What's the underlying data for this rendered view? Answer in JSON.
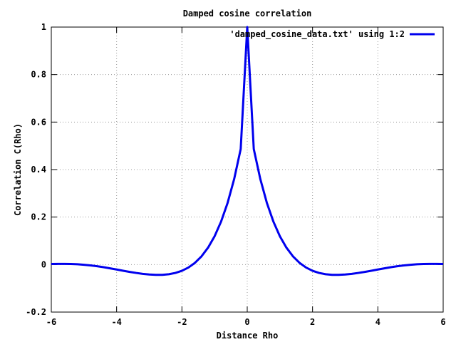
{
  "chart_data": {
    "type": "line",
    "title": "Damped cosine correlation",
    "xlabel": "Distance Rho",
    "ylabel": "Correlation C(Rho)",
    "xlim": [
      -6,
      6
    ],
    "ylim": [
      -0.2,
      1
    ],
    "xticks": [
      -6,
      -4,
      -2,
      0,
      2,
      4,
      6
    ],
    "xtick_labels": [
      "-6",
      "-4",
      "-2",
      "0",
      "2",
      "4",
      "6"
    ],
    "yticks": [
      -0.2,
      0,
      0.2,
      0.4,
      0.6,
      0.8,
      1
    ],
    "ytick_labels": [
      "-0.2",
      "0",
      "0.2",
      "0.4",
      "0.6",
      "0.8",
      "1"
    ],
    "grid": true,
    "legend_position": "top-right",
    "series": [
      {
        "name": "'damped_cosine_data.txt' using 1:2",
        "color": "#0000ee",
        "x": [
          -6,
          -5.8,
          -5.6,
          -5.4,
          -5.2,
          -5,
          -4.8,
          -4.6,
          -4.4,
          -4.2,
          -4,
          -3.8,
          -3.6,
          -3.4,
          -3.2,
          -3,
          -2.8,
          -2.6,
          -2.4,
          -2.2,
          -2,
          -1.8,
          -1.6,
          -1.4,
          -1.2,
          -1,
          -0.8,
          -0.6,
          -0.4,
          -0.2,
          0,
          0.2,
          0.4,
          0.6,
          0.8,
          1,
          1.2,
          1.4,
          1.6,
          1.8,
          2,
          2.2,
          2.4,
          2.6,
          2.8,
          3,
          3.2,
          3.4,
          3.6,
          3.8,
          4,
          4.2,
          4.4,
          4.6,
          4.8,
          5,
          5.2,
          5.4,
          5.6,
          5.8,
          6
        ],
        "y": [
          0.0025,
          0.0029,
          0.0029,
          0.0024,
          0.0012,
          -0.0007,
          -0.0034,
          -0.0069,
          -0.0111,
          -0.0158,
          -0.0208,
          -0.0259,
          -0.0308,
          -0.0352,
          -0.039,
          -0.0418,
          -0.0433,
          -0.0431,
          -0.0406,
          -0.0352,
          -0.0261,
          -0.0123,
          0.0074,
          0.0347,
          0.0713,
          0.1192,
          0.1812,
          0.2603,
          0.3604,
          0.4865,
          1.0,
          0.4865,
          0.3604,
          0.2603,
          0.1812,
          0.1192,
          0.0713,
          0.0347,
          0.0074,
          -0.0123,
          -0.0261,
          -0.0352,
          -0.0406,
          -0.0431,
          -0.0433,
          -0.0418,
          -0.039,
          -0.0352,
          -0.0308,
          -0.0259,
          -0.0208,
          -0.0158,
          -0.0111,
          -0.0069,
          -0.0034,
          -0.0007,
          0.0012,
          0.0024,
          0.0029,
          0.0029,
          0.0025
        ]
      }
    ]
  }
}
